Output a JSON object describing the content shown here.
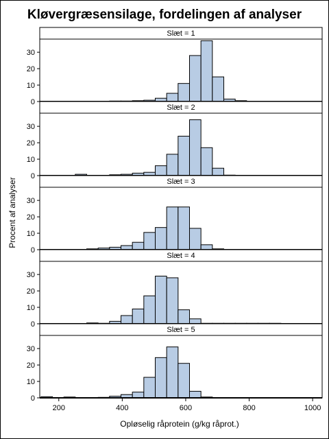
{
  "chart_data": {
    "type": "bar",
    "title": "Kløvergræsensilage, fordelingen af analyser",
    "xlabel": "Opløselig råprotein (g/kg råprot.)",
    "ylabel": "Procent af analyser",
    "xlim": [
      140,
      1030
    ],
    "ylim": [
      0,
      38
    ],
    "x_ticks": [
      200,
      400,
      600,
      800,
      1000
    ],
    "y_ticks": [
      0,
      10,
      20,
      30
    ],
    "bin_width": 36,
    "bar_color": "#b8cce4",
    "edge_color": "#000000",
    "grid": false,
    "panels": [
      {
        "label": "Slæt = 1",
        "bins": [
          {
            "x": 162,
            "y": 0
          },
          {
            "x": 198,
            "y": 0
          },
          {
            "x": 234,
            "y": 0
          },
          {
            "x": 270,
            "y": 0
          },
          {
            "x": 306,
            "y": 0
          },
          {
            "x": 342,
            "y": 0.2
          },
          {
            "x": 378,
            "y": 0.3
          },
          {
            "x": 414,
            "y": 0.3
          },
          {
            "x": 450,
            "y": 0.5
          },
          {
            "x": 486,
            "y": 0.8
          },
          {
            "x": 522,
            "y": 2
          },
          {
            "x": 558,
            "y": 5
          },
          {
            "x": 594,
            "y": 11
          },
          {
            "x": 630,
            "y": 28
          },
          {
            "x": 666,
            "y": 37
          },
          {
            "x": 702,
            "y": 15
          },
          {
            "x": 738,
            "y": 1.5
          },
          {
            "x": 774,
            "y": 0.5
          }
        ]
      },
      {
        "label": "Slæt = 2",
        "bins": [
          {
            "x": 162,
            "y": 0.2
          },
          {
            "x": 198,
            "y": 0
          },
          {
            "x": 234,
            "y": 0
          },
          {
            "x": 270,
            "y": 0.8
          },
          {
            "x": 306,
            "y": 0
          },
          {
            "x": 342,
            "y": 0
          },
          {
            "x": 378,
            "y": 0.5
          },
          {
            "x": 414,
            "y": 0.8
          },
          {
            "x": 450,
            "y": 1.5
          },
          {
            "x": 486,
            "y": 2
          },
          {
            "x": 522,
            "y": 6
          },
          {
            "x": 558,
            "y": 13
          },
          {
            "x": 594,
            "y": 24
          },
          {
            "x": 630,
            "y": 34
          },
          {
            "x": 666,
            "y": 17
          },
          {
            "x": 702,
            "y": 4.5
          },
          {
            "x": 738,
            "y": 0.3
          }
        ]
      },
      {
        "label": "Slæt = 3",
        "bins": [
          {
            "x": 306,
            "y": 0.5
          },
          {
            "x": 342,
            "y": 1
          },
          {
            "x": 378,
            "y": 1.5
          },
          {
            "x": 414,
            "y": 2.5
          },
          {
            "x": 450,
            "y": 4.5
          },
          {
            "x": 486,
            "y": 10.5
          },
          {
            "x": 522,
            "y": 13.5
          },
          {
            "x": 558,
            "y": 26
          },
          {
            "x": 594,
            "y": 26
          },
          {
            "x": 630,
            "y": 13
          },
          {
            "x": 666,
            "y": 3
          },
          {
            "x": 702,
            "y": 0.5
          }
        ]
      },
      {
        "label": "Slæt = 4",
        "bins": [
          {
            "x": 306,
            "y": 0.5
          },
          {
            "x": 342,
            "y": 0.3
          },
          {
            "x": 378,
            "y": 1.5
          },
          {
            "x": 414,
            "y": 5
          },
          {
            "x": 450,
            "y": 9
          },
          {
            "x": 486,
            "y": 17
          },
          {
            "x": 522,
            "y": 29
          },
          {
            "x": 558,
            "y": 28
          },
          {
            "x": 594,
            "y": 8.5
          },
          {
            "x": 630,
            "y": 3
          },
          {
            "x": 666,
            "y": 0.3
          },
          {
            "x": 702,
            "y": 0.3
          },
          {
            "x": 738,
            "y": 0.3
          },
          {
            "x": 774,
            "y": 0.3
          },
          {
            "x": 810,
            "y": 0.3
          },
          {
            "x": 846,
            "y": 0.3
          },
          {
            "x": 882,
            "y": 0.3
          }
        ]
      },
      {
        "label": "Slæt = 5",
        "bins": [
          {
            "x": 162,
            "y": 0.7
          },
          {
            "x": 198,
            "y": 0
          },
          {
            "x": 234,
            "y": 0.5
          },
          {
            "x": 270,
            "y": 0
          },
          {
            "x": 306,
            "y": 0
          },
          {
            "x": 342,
            "y": 0.3
          },
          {
            "x": 378,
            "y": 1
          },
          {
            "x": 414,
            "y": 2
          },
          {
            "x": 450,
            "y": 3.5
          },
          {
            "x": 486,
            "y": 12.5
          },
          {
            "x": 522,
            "y": 24.5
          },
          {
            "x": 558,
            "y": 31
          },
          {
            "x": 594,
            "y": 21
          },
          {
            "x": 630,
            "y": 4
          },
          {
            "x": 666,
            "y": 0.5
          }
        ]
      }
    ]
  }
}
